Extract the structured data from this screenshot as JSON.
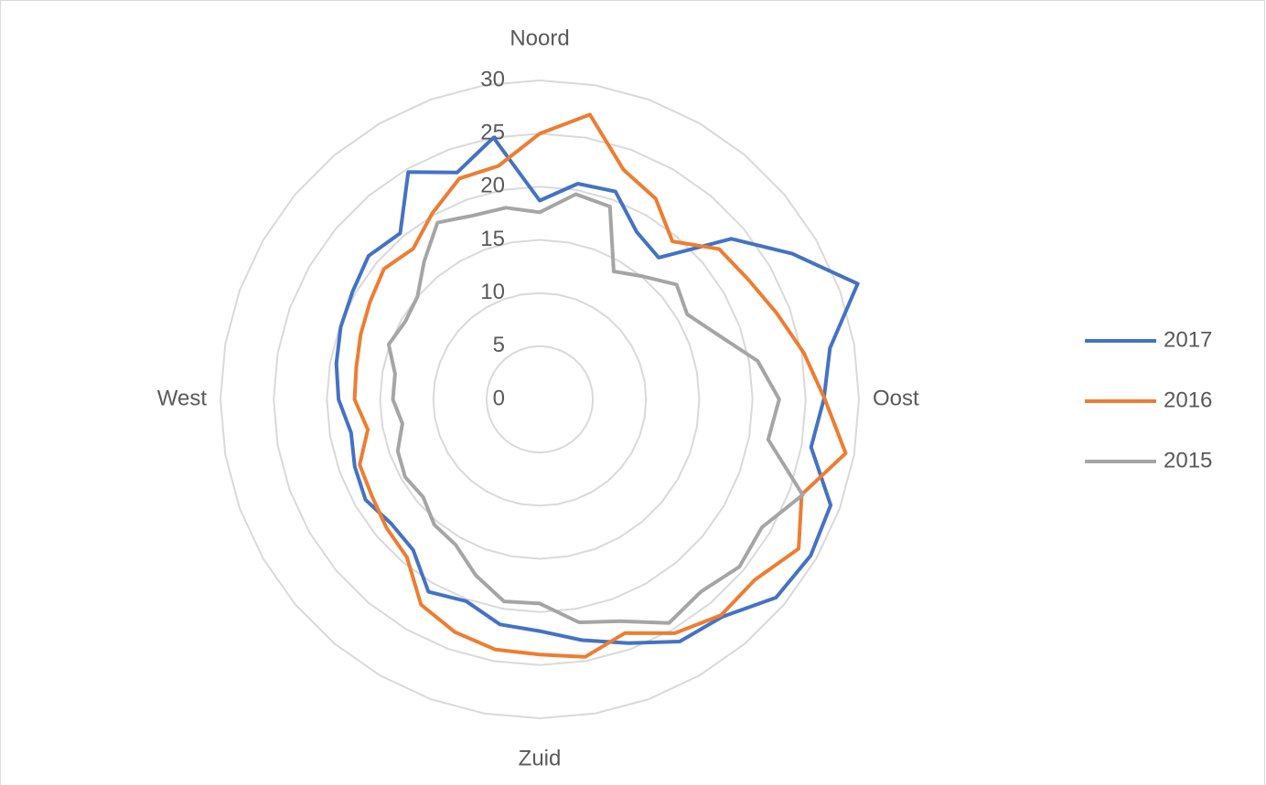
{
  "chart_data": {
    "type": "radar",
    "categories": [
      "Noord",
      null,
      null,
      null,
      null,
      null,
      null,
      null,
      null,
      "Oost",
      null,
      null,
      null,
      null,
      null,
      null,
      null,
      null,
      "Zuid",
      null,
      null,
      null,
      null,
      null,
      null,
      null,
      null,
      "West",
      null,
      null,
      null,
      null,
      null,
      null,
      null,
      null
    ],
    "series": [
      {
        "name": "2017",
        "color": "#4472c4",
        "values": [
          18.7,
          20.6,
          20.8,
          18.2,
          17.4,
          23.5,
          27.4,
          31.8,
          27.7,
          26.7,
          25.9,
          29.1,
          29.4,
          29,
          26.7,
          26.3,
          24.4,
          23,
          21.8,
          21.5,
          20.2,
          20.9,
          18.5,
          18.2,
          18.9,
          18.5,
          18,
          18.9,
          19.4,
          19.9,
          20.3,
          21,
          20.4,
          24.7,
          22.7,
          25
        ]
      },
      {
        "name": "2016",
        "color": "#ed7d31",
        "values": [
          25,
          27.2,
          23,
          21.8,
          19.4,
          22,
          22.6,
          23.7,
          25.2,
          26.8,
          29.2,
          26.2,
          28.1,
          26.4,
          26.5,
          25.4,
          23.4,
          24.6,
          24,
          23.9,
          23.3,
          22.3,
          19.4,
          18.8,
          18.2,
          18,
          16.4,
          17.4,
          17.5,
          17.9,
          18.4,
          19.1,
          18.5,
          20.2,
          22.1,
          22.3
        ]
      },
      {
        "name": "2015",
        "color": "#a5a5a5",
        "values": [
          17.6,
          19.6,
          19.3,
          13.9,
          15.1,
          16.8,
          16,
          17.8,
          20.8,
          22.5,
          21.8,
          26.3,
          24.1,
          24.5,
          23.6,
          24.3,
          22.2,
          21.3,
          19.2,
          19.3,
          17.6,
          15.8,
          15.4,
          14.3,
          14.6,
          14.2,
          13.1,
          13.8,
          13.8,
          15.1,
          14.6,
          15,
          16.9,
          19.2,
          18.4,
          18.3
        ]
      }
    ],
    "ylim": [
      0,
      30
    ],
    "yticks": [
      0,
      5,
      10,
      15,
      20,
      25,
      30
    ],
    "grid": true,
    "legend": "right"
  }
}
